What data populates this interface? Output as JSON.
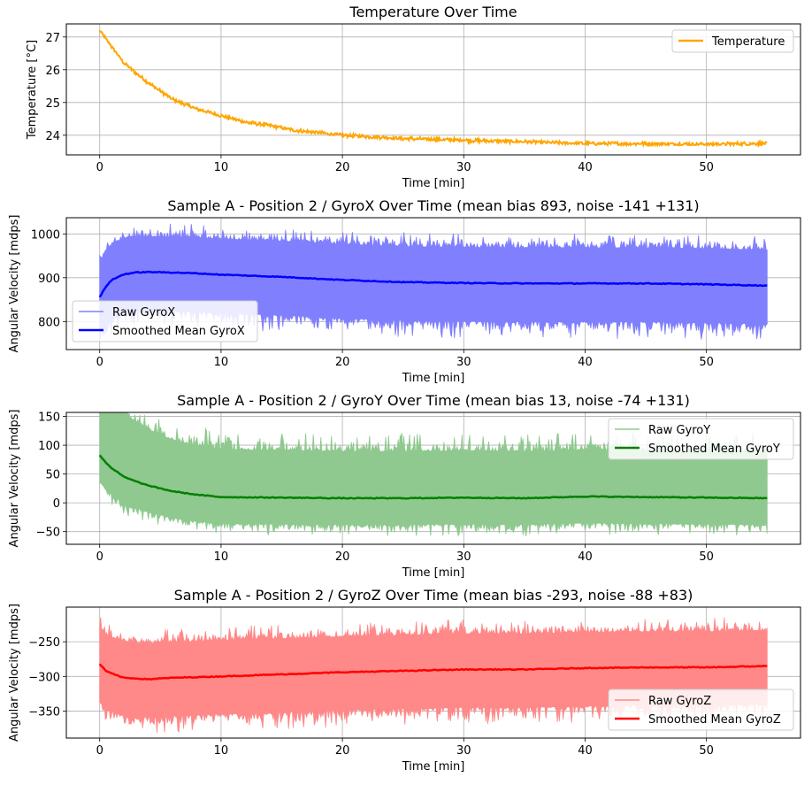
{
  "chart_data": [
    {
      "type": "line",
      "title": "Temperature Over Time",
      "xlabel": "Time [min]",
      "ylabel": "Temperature [°C]",
      "xlim": [
        -2.75,
        57.75
      ],
      "ylim": [
        23.4,
        27.4
      ],
      "xticks": [
        0,
        10,
        20,
        30,
        40,
        50
      ],
      "yticks": [
        24,
        25,
        26,
        27
      ],
      "grid": true,
      "legend": "upper-right",
      "series": [
        {
          "name": "Temperature",
          "kind": "line",
          "color": "#ffa500",
          "x": [
            0,
            1,
            2,
            3,
            4,
            5,
            6,
            7,
            8,
            9,
            10,
            12,
            14,
            16,
            18,
            20,
            25,
            30,
            35,
            40,
            45,
            50,
            55
          ],
          "y": [
            27.2,
            26.7,
            26.2,
            25.9,
            25.6,
            25.35,
            25.1,
            24.95,
            24.8,
            24.7,
            24.6,
            24.4,
            24.3,
            24.15,
            24.08,
            24.0,
            23.9,
            23.85,
            23.8,
            23.75,
            23.74,
            23.73,
            23.75
          ]
        }
      ]
    },
    {
      "type": "line",
      "title": "Sample A - Position 2 / GyroX Over Time (mean bias 893, noise -141 +131)",
      "xlabel": "Time [min]",
      "ylabel": "Angular Velocity [mdps]",
      "xlim": [
        -2.75,
        57.75
      ],
      "ylim": [
        736,
        1037
      ],
      "xticks": [
        0,
        10,
        20,
        30,
        40,
        50
      ],
      "yticks": [
        800,
        900,
        1000
      ],
      "grid": true,
      "legend": "lower-left",
      "series": [
        {
          "name": "Raw GyroX",
          "kind": "raw",
          "color": "#8080ff",
          "spread": [
            -141,
            131
          ]
        },
        {
          "name": "Smoothed Mean GyroX",
          "kind": "smooth",
          "color": "#0000ff",
          "x": [
            0,
            0.5,
            1,
            2,
            3,
            4,
            6,
            8,
            10,
            15,
            20,
            25,
            30,
            35,
            40,
            45,
            50,
            55
          ],
          "y": [
            855,
            880,
            895,
            908,
            912,
            913,
            912,
            910,
            907,
            902,
            895,
            890,
            888,
            887,
            887,
            887,
            885,
            882
          ]
        }
      ]
    },
    {
      "type": "line",
      "title": "Sample A - Position 2 / GyroY Over Time (mean bias 13, noise -74 +131)",
      "xlabel": "Time [min]",
      "ylabel": "Angular Velocity [mdps]",
      "xlim": [
        -2.75,
        57.75
      ],
      "ylim": [
        -72,
        157
      ],
      "xticks": [
        0,
        10,
        20,
        30,
        40,
        50
      ],
      "yticks": [
        -50,
        0,
        50,
        100,
        150
      ],
      "grid": true,
      "legend": "upper-right",
      "series": [
        {
          "name": "Raw GyroY",
          "kind": "raw",
          "color": "#8fc98f",
          "spread": [
            -74,
            131
          ]
        },
        {
          "name": "Smoothed Mean GyroY",
          "kind": "smooth",
          "color": "#008000",
          "x": [
            0,
            0.5,
            1,
            2,
            3,
            4,
            6,
            8,
            10,
            15,
            20,
            25,
            30,
            35,
            40,
            45,
            50,
            55
          ],
          "y": [
            83,
            70,
            60,
            45,
            37,
            30,
            20,
            14,
            10,
            9,
            8,
            8,
            9,
            8,
            11,
            10,
            9,
            8
          ]
        }
      ]
    },
    {
      "type": "line",
      "title": "Sample A - Position 2 / GyroZ Over Time (mean bias -293, noise -88 +83)",
      "xlabel": "Time [min]",
      "ylabel": "Angular Velocity [mdps]",
      "xlim": [
        -2.75,
        57.75
      ],
      "ylim": [
        -389,
        -200
      ],
      "xticks": [
        0,
        10,
        20,
        30,
        40,
        50
      ],
      "yticks": [
        -350,
        -300,
        -250
      ],
      "grid": true,
      "legend": "lower-right",
      "series": [
        {
          "name": "Raw GyroZ",
          "kind": "raw",
          "color": "#ff8888",
          "spread": [
            -88,
            83
          ]
        },
        {
          "name": "Smoothed Mean GyroZ",
          "kind": "smooth",
          "color": "#ff0000",
          "x": [
            0,
            0.5,
            1,
            2,
            3,
            4,
            6,
            8,
            10,
            15,
            20,
            25,
            30,
            35,
            40,
            45,
            50,
            55
          ],
          "y": [
            -282,
            -292,
            -296,
            -302,
            -303,
            -304,
            -302,
            -301,
            -300,
            -297,
            -294,
            -292,
            -290,
            -290,
            -288,
            -287,
            -287,
            -285
          ]
        }
      ]
    }
  ]
}
